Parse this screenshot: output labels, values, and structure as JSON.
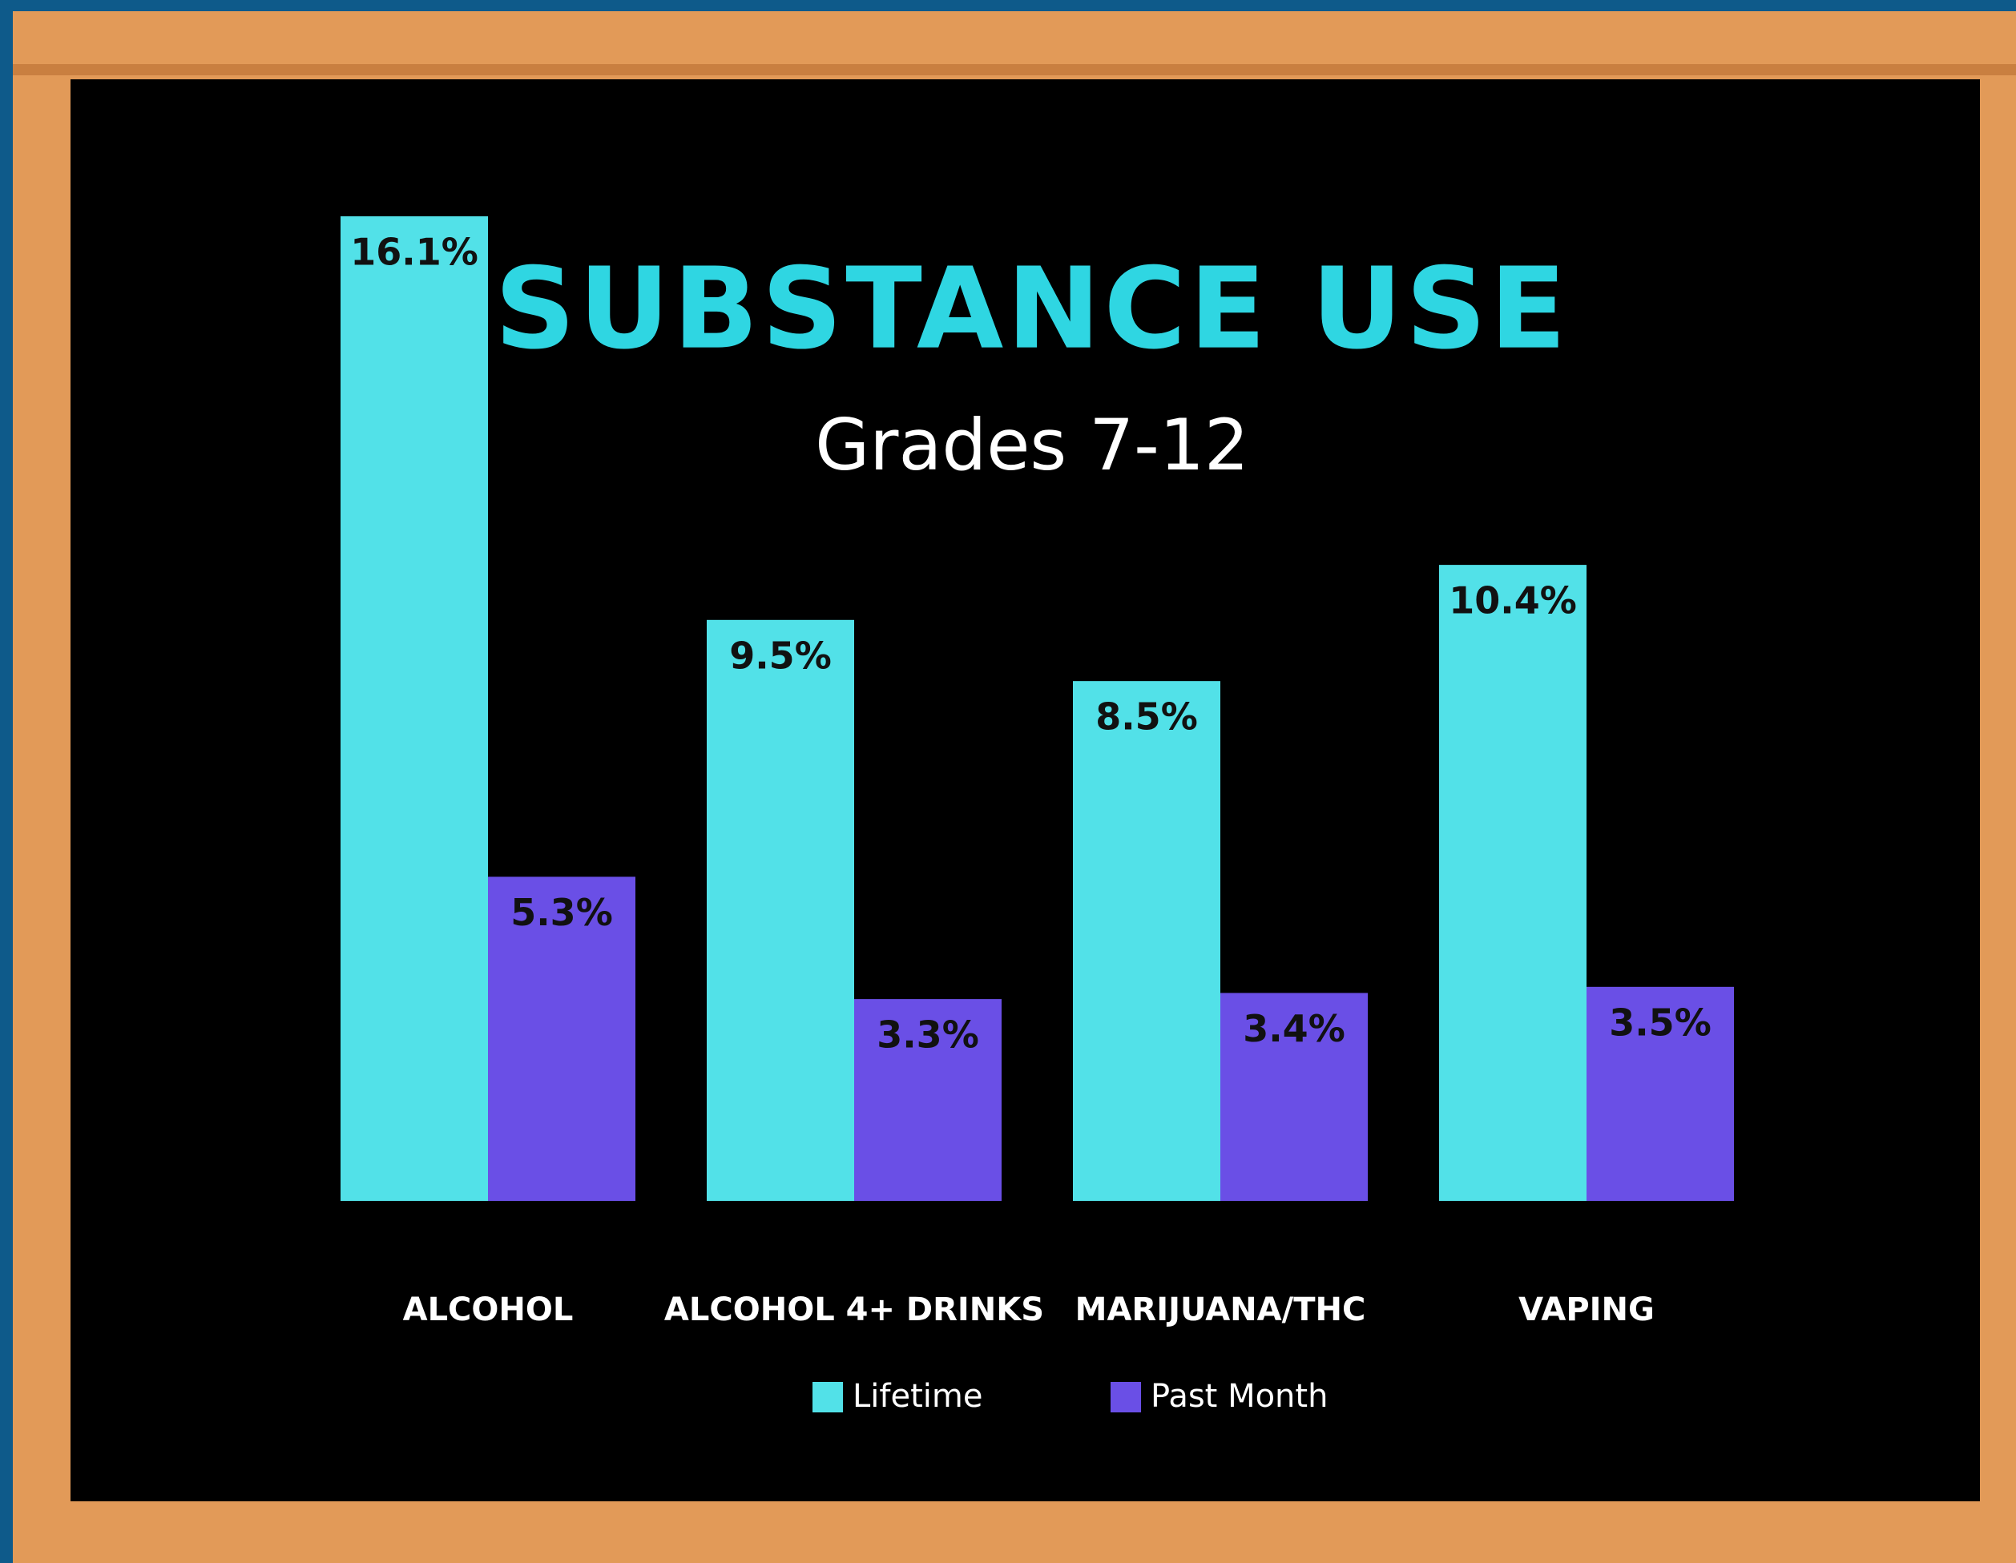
{
  "chart_data": {
    "type": "bar",
    "title": "SUBSTANCE USE",
    "subtitle": "Grades 7-12",
    "categories": [
      "ALCOHOL",
      "ALCOHOL 4+ DRINKS",
      "MARIJUANA/THC",
      "VAPING"
    ],
    "series": [
      {
        "name": "Lifetime",
        "color": "#52e1e8",
        "values": [
          16.1,
          9.5,
          8.5,
          10.4
        ],
        "value_labels": [
          "16.1%",
          "9.5%",
          "8.5%",
          "10.4%"
        ]
      },
      {
        "name": "Past Month",
        "color": "#6a4fe6",
        "values": [
          5.3,
          3.3,
          3.4,
          3.5
        ],
        "value_labels": [
          "5.3%",
          "3.3%",
          "3.4%",
          "3.5%"
        ]
      }
    ],
    "legend": "bottom"
  }
}
